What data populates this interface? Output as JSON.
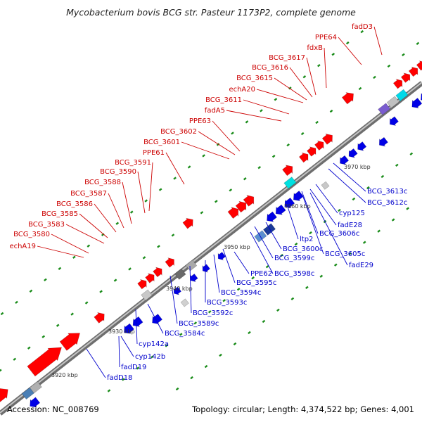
{
  "title": "Mycobacterium bovis BCG str. Pasteur 1173P2, complete genome",
  "footer": {
    "accession": "Accession: NC_008769",
    "summary": "Topology: circular; Length: 4,374,522 bp; Genes: 4,001"
  },
  "colors": {
    "forward": "#ff0000",
    "reverse": "#0000e6",
    "backbone": "#9a9a9a",
    "tick": "#1a8c1a",
    "label_red": "#cc0000",
    "label_blue": "#0000cc"
  },
  "scale_labels": [
    "3920 kbp",
    "3930 kbp",
    "3940 kbp",
    "3950 kbp",
    "3960 kbp",
    "3970 kbp"
  ],
  "labels_top": [
    "fadD3",
    "PPE64",
    "fdxB",
    "BCG_3617",
    "BCG_3616",
    "BCG_3615",
    "echA20",
    "BCG_3611",
    "fadA5",
    "PPE63",
    "BCG_3602",
    "BCG_3601",
    "PPE61",
    "BCG_3591",
    "BCG_3590",
    "BCG_3588",
    "BCG_3587",
    "BCG_3586",
    "BCG_3585",
    "BCG_3583",
    "BCG_3580",
    "echA19"
  ],
  "labels_right": [
    "BCG_3613c",
    "BCG_3612c",
    "cyp125",
    "fadE28",
    "BCG_3606c",
    "BCG_3605c",
    "fadE29",
    "ltp2",
    "BCG_3600c",
    "BCG_3599c",
    "BCG_3598c",
    "PPE62",
    "BCG_3595c",
    "BCG_3594c",
    "BCG_3593c",
    "BCG_3592c",
    "BCG_3589c",
    "BCG_3584c",
    "cyp142a",
    "cyp142b",
    "fadD19",
    "fadD18"
  ]
}
